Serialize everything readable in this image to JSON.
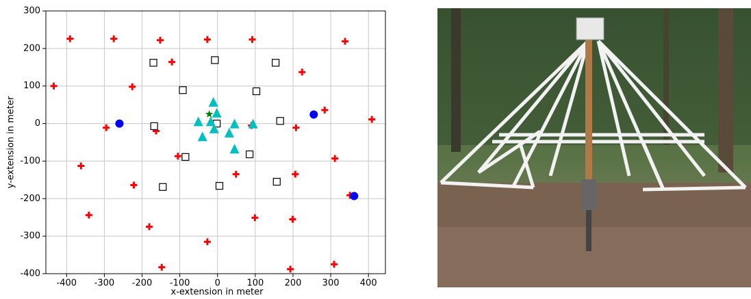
{
  "chart_data": {
    "type": "scatter",
    "xlabel": "x-extension in meter",
    "ylabel": "y-extension in meter",
    "xlim": [
      -455,
      445
    ],
    "ylim": [
      -400,
      300
    ],
    "xticks": [
      -400,
      -300,
      -200,
      -100,
      0,
      100,
      200,
      300,
      400
    ],
    "yticks": [
      -400,
      -300,
      -200,
      -100,
      0,
      100,
      200,
      300
    ],
    "grid": true,
    "series": [
      {
        "marker": "plus",
        "color": "#ff0000",
        "x": [
          -391,
          -275,
          -152,
          -27,
          92,
          338,
          -434,
          -226,
          224,
          -121,
          284,
          -295,
          -163,
          208,
          409,
          90,
          -105,
          -362,
          311,
          -222,
          49,
          206,
          -341,
          99,
          199,
          -181,
          -27,
          -148,
          309,
          193,
          351
        ],
        "y": [
          226,
          226,
          222,
          224,
          224,
          219,
          100,
          98,
          137,
          164,
          36,
          -11,
          -20,
          -11,
          11,
          -5,
          -87,
          -113,
          -93,
          -164,
          -135,
          -135,
          -244,
          -251,
          -255,
          -275,
          -315,
          -383,
          -375,
          -388,
          -191
        ]
      },
      {
        "marker": "square",
        "color": "#000000",
        "x": [
          -170,
          -7,
          154,
          -92,
          103,
          -168,
          -2,
          166,
          85,
          -85,
          -145,
          5,
          157
        ],
        "y": [
          162,
          169,
          162,
          89,
          86,
          -7,
          0,
          7,
          -82,
          -89,
          -169,
          -166,
          -155
        ]
      },
      {
        "marker": "triangle",
        "color": "#00bfbf",
        "x": [
          -11,
          -2,
          -51,
          -18,
          -9,
          45,
          94,
          31,
          -40,
          45
        ],
        "y": [
          56,
          27,
          4,
          4,
          -15,
          -2,
          -2,
          -26,
          -36,
          -69
        ]
      },
      {
        "marker": "circle",
        "color": "#0000ff",
        "x": [
          -260,
          255,
          362
        ],
        "y": [
          0,
          24,
          -193
        ]
      },
      {
        "marker": "star",
        "color": "#008000",
        "x": [
          -22
        ],
        "y": [
          25
        ]
      }
    ]
  }
}
